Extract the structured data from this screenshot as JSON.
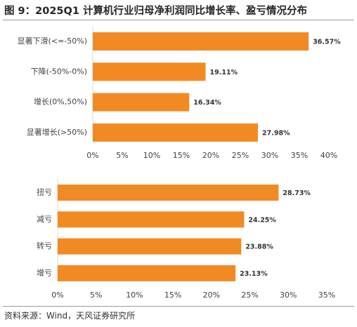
{
  "figure": {
    "title": "图 9：2025Q1 计算机行业归母净利润同比增长率、盈亏情况分布",
    "source": "资料来源：Wind，天风证券研究所"
  },
  "colors": {
    "bar": "#F28A23",
    "axis": "#D9D9D9",
    "rule": "#9A9A9A"
  },
  "chart_data": [
    {
      "type": "bar",
      "orientation": "horizontal",
      "categories": [
        "显著下滑(<=-50%)",
        "下降(-50%-0%)",
        "增长(0%,50%)",
        "显著增长(>50%)"
      ],
      "values": [
        36.57,
        19.11,
        16.34,
        27.98
      ],
      "value_labels": [
        "36.57%",
        "19.11%",
        "16.34%",
        "27.98%"
      ],
      "xlim": [
        0,
        40
      ],
      "ticks": [
        0,
        5,
        10,
        15,
        20,
        25,
        30,
        35,
        40
      ],
      "tick_labels": [
        "0%",
        "5%",
        "10%",
        "15%",
        "20%",
        "25%",
        "30%",
        "35%",
        "40%"
      ],
      "grid": false,
      "legend": "none"
    },
    {
      "type": "bar",
      "orientation": "horizontal",
      "categories": [
        "扭亏",
        "减亏",
        "转亏",
        "增亏"
      ],
      "values": [
        28.73,
        24.25,
        23.88,
        23.13
      ],
      "value_labels": [
        "28.73%",
        "24.25%",
        "23.88%",
        "23.13%"
      ],
      "xlim": [
        0,
        35
      ],
      "ticks": [
        0,
        5,
        10,
        15,
        20,
        25,
        30,
        35
      ],
      "tick_labels": [
        "0%",
        "5%",
        "10%",
        "15%",
        "20%",
        "25%",
        "30%",
        "35%"
      ],
      "grid": false,
      "legend": "none"
    }
  ]
}
